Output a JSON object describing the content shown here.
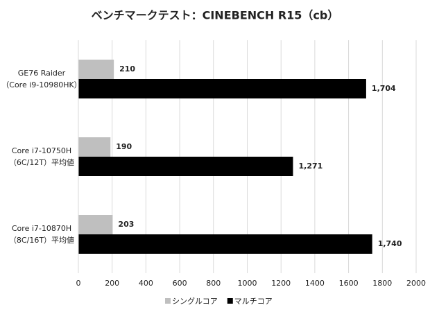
{
  "chart_data": {
    "type": "bar",
    "orientation": "horizontal",
    "title": "ベンチマークテスト：CINEBENCH R15（cb）",
    "categories": [
      [
        "GE76 Raider",
        "（Core i9-10980HK）"
      ],
      [
        "Core i7-10750H",
        "（6C/12T）平均値"
      ],
      [
        "Core i7-10870H",
        "（8C/16T）平均値"
      ]
    ],
    "series": [
      {
        "name": "シングルコア",
        "color": "#bfbfbf",
        "values": [
          210,
          190,
          203
        ],
        "value_labels": [
          "210",
          "190",
          "203"
        ]
      },
      {
        "name": "マルチコア",
        "color": "#000000",
        "values": [
          1704,
          1271,
          1740
        ],
        "value_labels": [
          "1,704",
          "1,271",
          "1,740"
        ]
      }
    ],
    "xlim": [
      0,
      2000
    ],
    "xticks": [
      0,
      200,
      400,
      600,
      800,
      1000,
      1200,
      1400,
      1600,
      1800,
      2000
    ],
    "grid": true,
    "legend": "bottom"
  }
}
